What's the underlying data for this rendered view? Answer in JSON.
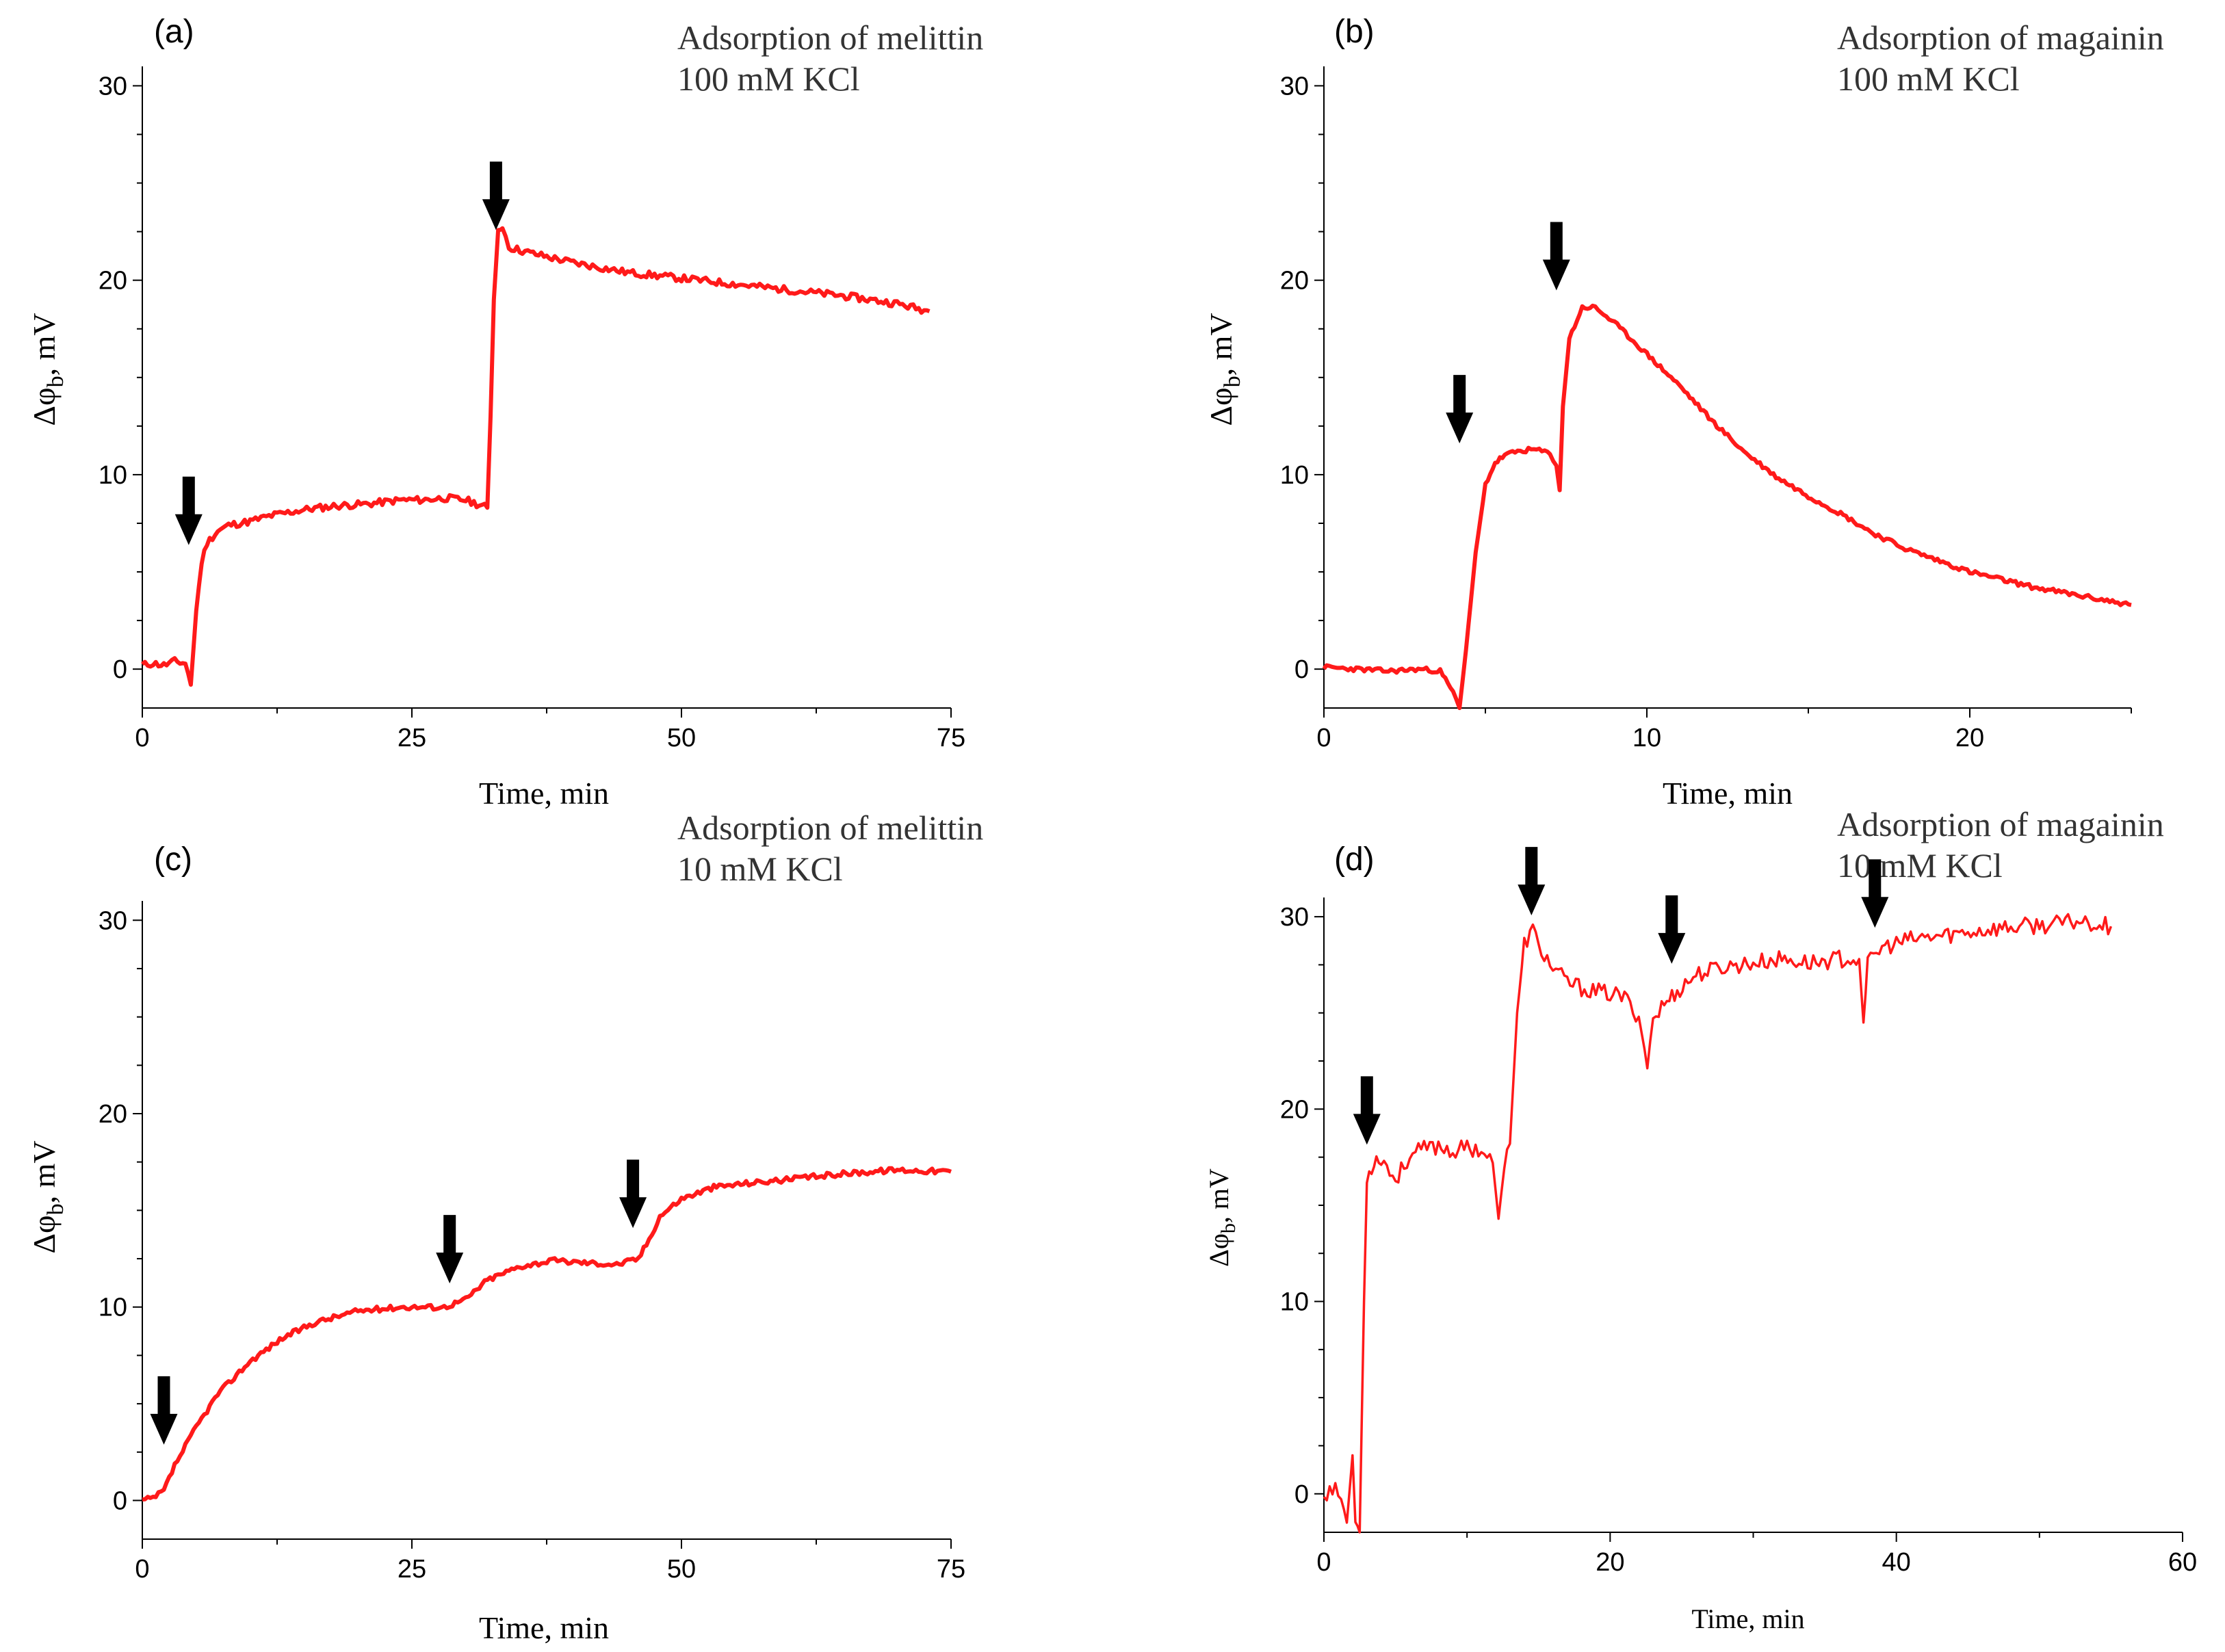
{
  "chart_data": [
    {
      "type": "line",
      "panel": "(a)",
      "title_line1": "Adsorption of melittin",
      "title_line2": "100 mM KCl",
      "xlabel": "Time, min",
      "ylabel": "Δφb, mV",
      "ylabel_main": "Δφ",
      "ylabel_sub": "b",
      "ylabel_unit": ", mV",
      "xlim": [
        0,
        75
      ],
      "ylim": [
        -2,
        31
      ],
      "xticks": [
        0,
        25,
        50,
        75
      ],
      "yticks": [
        0,
        10,
        20,
        30
      ],
      "xticklabels": [
        "0",
        "25",
        "50",
        "75"
      ],
      "yticklabels": [
        "0",
        "10",
        "20",
        "30"
      ],
      "line_color": "#ff1a1a",
      "series": [
        {
          "name": "melittin 100 mM KCl",
          "x": [
            0,
            1,
            2,
            3,
            4,
            4.5,
            5,
            5.5,
            6,
            7,
            8,
            10,
            12,
            15,
            18,
            21,
            24,
            26,
            28,
            30,
            31,
            32,
            32.3,
            32.6,
            33,
            33.4,
            34,
            36,
            40,
            45,
            50,
            55,
            60,
            65,
            70,
            73
          ],
          "y": [
            0.2,
            0.3,
            0.2,
            0.4,
            0.3,
            -0.8,
            3,
            5.5,
            6.5,
            7.1,
            7.4,
            7.6,
            7.9,
            8.2,
            8.4,
            8.5,
            8.7,
            8.7,
            8.8,
            8.7,
            8.5,
            8.3,
            13,
            19,
            22.5,
            22.8,
            21.7,
            21.4,
            20.9,
            20.4,
            20.1,
            19.8,
            19.5,
            19.2,
            18.8,
            18.4
          ]
        }
      ],
      "arrows_x": [
        4.3,
        32.8
      ]
    },
    {
      "type": "line",
      "panel": "(b)",
      "title_line1": "Adsorption of magainin",
      "title_line2": "100 mM KCl",
      "xlabel": "Time, min",
      "ylabel": "Δφb, mV",
      "ylabel_main": "Δφ",
      "ylabel_sub": "b",
      "ylabel_unit": ", mV",
      "xlim": [
        0,
        25
      ],
      "ylim": [
        -2,
        31
      ],
      "xticks": [
        0,
        10,
        20
      ],
      "yticks": [
        0,
        10,
        20,
        30
      ],
      "xticklabels": [
        "0",
        "10",
        "20"
      ],
      "yticklabels": [
        "0",
        "10",
        "20",
        "30"
      ],
      "line_color": "#ff1a1a",
      "series": [
        {
          "name": "magainin 100 mM KCl",
          "x": [
            0,
            1,
            2,
            3,
            3.6,
            4,
            4.2,
            4.4,
            4.7,
            5,
            5.3,
            5.6,
            6,
            6.5,
            7,
            7.2,
            7.3,
            7.4,
            7.6,
            8,
            8.4,
            9,
            10,
            11,
            12,
            13,
            14,
            15,
            16,
            17,
            18,
            19,
            20,
            21,
            22,
            23,
            24,
            25
          ],
          "y": [
            0.1,
            0,
            -0.1,
            0,
            -0.1,
            -1.2,
            -2,
            1,
            6,
            9.5,
            10.6,
            11,
            11.2,
            11.3,
            11.1,
            10.5,
            9.2,
            13.5,
            17,
            18.6,
            18.6,
            17.8,
            16.2,
            14.6,
            12.8,
            11.2,
            9.9,
            8.9,
            8,
            7,
            6.2,
            5.6,
            5,
            4.6,
            4.2,
            3.9,
            3.6,
            3.3
          ]
        }
      ],
      "arrows_x": [
        4.2,
        7.2
      ]
    },
    {
      "type": "line",
      "panel": "(c)",
      "title_line1": "Adsorption of melittin",
      "title_line2": "10 mM KCl",
      "xlabel": "Time, min",
      "ylabel": "Δφb, mV",
      "ylabel_main": "Δφ",
      "ylabel_sub": "b",
      "ylabel_unit": ", mV",
      "xlim": [
        0,
        75
      ],
      "ylim": [
        -2,
        31
      ],
      "xticks": [
        0,
        25,
        50,
        75
      ],
      "yticks": [
        0,
        10,
        20,
        30
      ],
      "xticklabels": [
        "0",
        "25",
        "50",
        "75"
      ],
      "yticklabels": [
        "0",
        "10",
        "20",
        "30"
      ],
      "line_color": "#ff1a1a",
      "series": [
        {
          "name": "melittin 10 mM KCl",
          "x": [
            0,
            1,
            2,
            3,
            5,
            7,
            10,
            13,
            16,
            20,
            24,
            28,
            30,
            32,
            35,
            38,
            41,
            44,
            46,
            47,
            48,
            50,
            53,
            56,
            60,
            65,
            70,
            75
          ],
          "y": [
            0,
            0.1,
            0.5,
            1.8,
            3.8,
            5.5,
            7.2,
            8.4,
            9.2,
            9.8,
            10,
            10,
            10.4,
            11.4,
            12.1,
            12.4,
            12.3,
            12.2,
            12.5,
            13.5,
            14.7,
            15.6,
            16.2,
            16.4,
            16.6,
            16.9,
            17.1,
            17
          ]
        }
      ],
      "arrows_x": [
        2,
        28.5,
        45.5
      ]
    },
    {
      "type": "line",
      "panel": "(d)",
      "title_line1": "Adsorption of magainin",
      "title_line2": "10 mM KCl",
      "xlabel": "Time, min",
      "ylabel": "Δφb, mV",
      "ylabel_main": "Δφ",
      "ylabel_sub": "b",
      "ylabel_unit": ", mV",
      "xlim": [
        0,
        60
      ],
      "ylim": [
        -2,
        31
      ],
      "xticks": [
        0,
        20,
        40,
        60
      ],
      "yticks": [
        0,
        10,
        20,
        30
      ],
      "xticklabels": [
        "0",
        "20",
        "40",
        "60"
      ],
      "yticklabels": [
        "0",
        "10",
        "20",
        "30"
      ],
      "line_color": "#ff1a1a",
      "series": [
        {
          "name": "magainin 10 mM KCl",
          "x": [
            0,
            0.6,
            1.2,
            1.6,
            2,
            2.2,
            2.5,
            2.8,
            3,
            3.5,
            4,
            5,
            6,
            7,
            8,
            9,
            10,
            11,
            11.8,
            12.2,
            12.6,
            13,
            13.5,
            14,
            14.6,
            15,
            16,
            17,
            18,
            19,
            20,
            21,
            22,
            22.6,
            23,
            23.6,
            24.5,
            26,
            28,
            30,
            32,
            34,
            36,
            37.4,
            37.7,
            38,
            39,
            41,
            43,
            45,
            47,
            49,
            51,
            53,
            55
          ],
          "y": [
            0,
            0.3,
            -0.2,
            -1.5,
            2,
            -1.5,
            -2,
            10,
            16.5,
            17.3,
            17.5,
            16.3,
            17.6,
            17.9,
            18.1,
            17.8,
            18,
            17.9,
            17.2,
            14.3,
            17,
            18.2,
            25,
            28.6,
            29.3,
            28.5,
            27.3,
            26.6,
            26.3,
            26.1,
            26,
            25.8,
            24.8,
            22.3,
            24.7,
            25.3,
            26,
            27,
            27.4,
            27.6,
            27.8,
            27.6,
            27.8,
            27.8,
            24.5,
            27.5,
            28.4,
            28.8,
            29,
            29.2,
            29.4,
            29.5,
            29.6,
            29.8,
            29.5
          ]
        }
      ],
      "arrows_x": [
        3,
        14.5,
        24.3,
        38.5
      ]
    }
  ]
}
